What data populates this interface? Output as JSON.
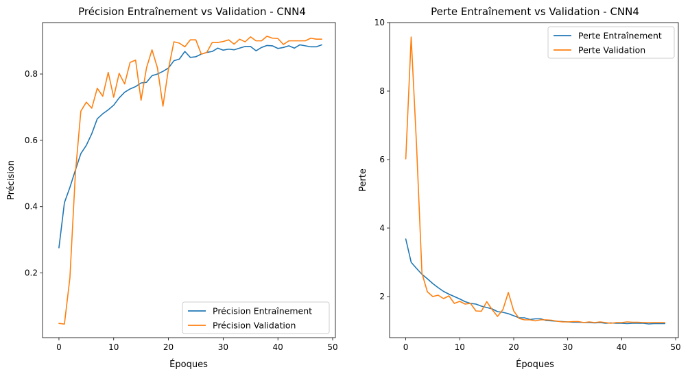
{
  "chart_data": [
    {
      "type": "line",
      "title": "Précision Entraînement vs Validation - CNN4",
      "xlabel": "Époques",
      "ylabel": "Précision",
      "xlim": [
        -3,
        50.5
      ],
      "ylim": [
        0.005,
        0.955
      ],
      "xticks": [
        0,
        10,
        20,
        30,
        40,
        50
      ],
      "yticks": [
        0.2,
        0.4,
        0.6,
        0.8
      ],
      "legend_loc": "lower-right",
      "grid": false,
      "x": [
        0,
        1,
        2,
        3,
        4,
        5,
        6,
        7,
        8,
        9,
        10,
        11,
        12,
        13,
        14,
        15,
        16,
        17,
        18,
        19,
        20,
        21,
        22,
        23,
        24,
        25,
        26,
        27,
        28,
        29,
        30,
        31,
        32,
        33,
        34,
        35,
        36,
        37,
        38,
        39,
        40,
        41,
        42,
        43,
        44,
        45,
        46,
        47,
        48
      ],
      "series": [
        {
          "name": "Précision Entraînement",
          "color": "#1f77b4",
          "values": [
            0.276,
            0.412,
            0.458,
            0.51,
            0.56,
            0.585,
            0.62,
            0.665,
            0.68,
            0.692,
            0.706,
            0.728,
            0.745,
            0.755,
            0.762,
            0.773,
            0.775,
            0.795,
            0.8,
            0.808,
            0.818,
            0.84,
            0.845,
            0.868,
            0.85,
            0.852,
            0.86,
            0.865,
            0.868,
            0.878,
            0.872,
            0.875,
            0.873,
            0.878,
            0.883,
            0.883,
            0.87,
            0.88,
            0.886,
            0.885,
            0.877,
            0.88,
            0.885,
            0.878,
            0.888,
            0.885,
            0.882,
            0.882,
            0.888
          ]
        },
        {
          "name": "Précision Validation",
          "color": "#ff7f0e",
          "values": [
            0.048,
            0.046,
            0.185,
            0.5,
            0.688,
            0.715,
            0.697,
            0.757,
            0.733,
            0.805,
            0.73,
            0.802,
            0.77,
            0.835,
            0.842,
            0.721,
            0.819,
            0.873,
            0.818,
            0.703,
            0.815,
            0.897,
            0.893,
            0.882,
            0.903,
            0.903,
            0.86,
            0.865,
            0.895,
            0.895,
            0.898,
            0.903,
            0.89,
            0.905,
            0.897,
            0.912,
            0.9,
            0.9,
            0.914,
            0.908,
            0.907,
            0.889,
            0.9,
            0.9,
            0.9,
            0.9,
            0.908,
            0.905,
            0.905
          ]
        }
      ]
    },
    {
      "type": "line",
      "title": "Perte Entraînement vs Validation - CNN4",
      "xlabel": "Époques",
      "ylabel": "Perte",
      "xlim": [
        -3,
        50.5
      ],
      "ylim": [
        0.8,
        10.0
      ],
      "xticks": [
        0,
        10,
        20,
        30,
        40,
        50
      ],
      "yticks": [
        2,
        4,
        6,
        8,
        10
      ],
      "legend_loc": "upper-right",
      "grid": false,
      "x": [
        0,
        1,
        2,
        3,
        4,
        5,
        6,
        7,
        8,
        9,
        10,
        11,
        12,
        13,
        14,
        15,
        16,
        17,
        18,
        19,
        20,
        21,
        22,
        23,
        24,
        25,
        26,
        27,
        28,
        29,
        30,
        31,
        32,
        33,
        34,
        35,
        36,
        37,
        38,
        39,
        40,
        41,
        42,
        43,
        44,
        45,
        46,
        47,
        48
      ],
      "series": [
        {
          "name": "Perte Entraînement",
          "color": "#1f77b4",
          "values": [
            3.68,
            3.0,
            2.82,
            2.65,
            2.52,
            2.38,
            2.26,
            2.15,
            2.07,
            2.0,
            1.93,
            1.85,
            1.8,
            1.78,
            1.72,
            1.68,
            1.64,
            1.56,
            1.54,
            1.5,
            1.44,
            1.38,
            1.38,
            1.33,
            1.35,
            1.35,
            1.3,
            1.29,
            1.28,
            1.27,
            1.26,
            1.25,
            1.25,
            1.24,
            1.24,
            1.23,
            1.24,
            1.22,
            1.23,
            1.22,
            1.22,
            1.21,
            1.22,
            1.22,
            1.22,
            1.2,
            1.21,
            1.21,
            1.21
          ]
        },
        {
          "name": "Perte Validation",
          "color": "#ff7f0e",
          "values": [
            6.02,
            9.58,
            6.4,
            2.68,
            2.14,
            2.0,
            2.04,
            1.94,
            2.02,
            1.8,
            1.86,
            1.78,
            1.8,
            1.58,
            1.57,
            1.85,
            1.62,
            1.42,
            1.62,
            2.12,
            1.58,
            1.36,
            1.32,
            1.32,
            1.29,
            1.32,
            1.32,
            1.31,
            1.28,
            1.26,
            1.26,
            1.27,
            1.27,
            1.24,
            1.26,
            1.24,
            1.26,
            1.24,
            1.22,
            1.24,
            1.24,
            1.26,
            1.25,
            1.25,
            1.24,
            1.24,
            1.24,
            1.24,
            1.24
          ]
        }
      ]
    }
  ]
}
